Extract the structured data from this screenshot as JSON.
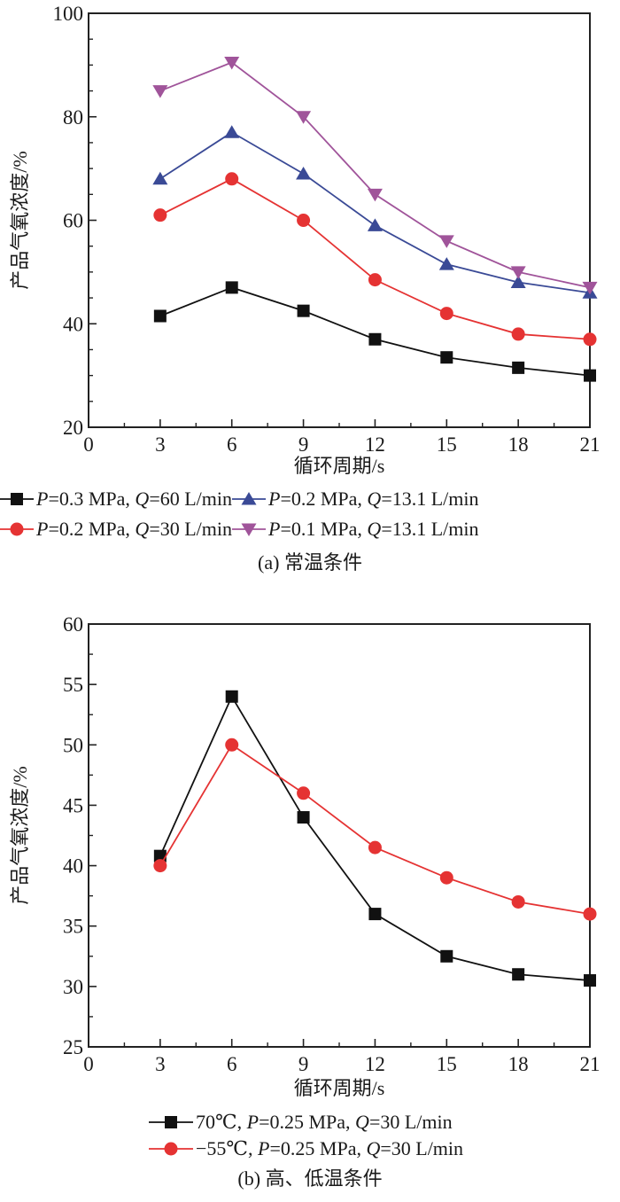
{
  "chart_data": [
    {
      "id": "a",
      "type": "line",
      "caption": "(a) 常温条件",
      "xlabel": "循环周期/s",
      "ylabel": "产品气氧浓度/%",
      "xlim": [
        0,
        21
      ],
      "ylim": [
        20,
        100
      ],
      "x_ticks": [
        0,
        3,
        6,
        9,
        12,
        15,
        18,
        21
      ],
      "y_ticks": [
        20,
        40,
        60,
        80,
        100
      ],
      "grid": false,
      "legend_placement": "bottom",
      "x": [
        3,
        6,
        9,
        12,
        15,
        18,
        21
      ],
      "series": [
        {
          "name": "P=0.3 MPa, Q=60 L/min",
          "label_parts": [
            [
              "P",
              true
            ],
            [
              "=0.3 MPa, ",
              false
            ],
            [
              "Q",
              true
            ],
            [
              "=60 L/min",
              false
            ]
          ],
          "color": "#111111",
          "marker": "square",
          "values": [
            41.5,
            47,
            42.5,
            37,
            33.5,
            31.5,
            30
          ]
        },
        {
          "name": "P=0.2 MPa, Q=13.1 L/min",
          "label_parts": [
            [
              "P",
              true
            ],
            [
              "=0.2 MPa, ",
              false
            ],
            [
              "Q",
              true
            ],
            [
              "=13.1 L/min",
              false
            ]
          ],
          "color": "#3a4a96",
          "marker": "triangle-up",
          "values": [
            68,
            77,
            69,
            59,
            51.5,
            48,
            46
          ]
        },
        {
          "name": "P=0.2 MPa, Q=30 L/min",
          "label_parts": [
            [
              "P",
              true
            ],
            [
              "=0.2 MPa, ",
              false
            ],
            [
              "Q",
              true
            ],
            [
              "=30 L/min",
              false
            ]
          ],
          "color": "#e53333",
          "marker": "circle",
          "values": [
            61,
            68,
            60,
            48.5,
            42,
            38,
            37
          ]
        },
        {
          "name": "P=0.1 MPa, Q=13.1 L/min",
          "label_parts": [
            [
              "P",
              true
            ],
            [
              "=0.1 MPa, ",
              false
            ],
            [
              "Q",
              true
            ],
            [
              "=13.1 L/min",
              false
            ]
          ],
          "color": "#a0549a",
          "marker": "triangle-down",
          "values": [
            85,
            90.5,
            80,
            65,
            56,
            50,
            47
          ]
        }
      ]
    },
    {
      "id": "b",
      "type": "line",
      "caption": "(b) 高、低温条件",
      "xlabel": "循环周期/s",
      "ylabel": "产品气氧浓度/%",
      "xlim": [
        0,
        21
      ],
      "ylim": [
        25,
        60
      ],
      "x_ticks": [
        0,
        3,
        6,
        9,
        12,
        15,
        18,
        21
      ],
      "y_ticks": [
        25,
        30,
        35,
        40,
        45,
        50,
        55,
        60
      ],
      "grid": false,
      "legend_placement": "bottom",
      "x": [
        3,
        6,
        9,
        12,
        15,
        18,
        21
      ],
      "series": [
        {
          "name": "70℃, P=0.25 MPa, Q=30 L/min",
          "label_parts": [
            [
              "70℃, ",
              false
            ],
            [
              "P",
              true
            ],
            [
              "=0.25 MPa, ",
              false
            ],
            [
              "Q",
              true
            ],
            [
              "=30 L/min",
              false
            ]
          ],
          "color": "#111111",
          "marker": "square",
          "values": [
            40.8,
            54,
            44,
            36,
            32.5,
            31,
            30.5
          ]
        },
        {
          "name": "−55℃, P=0.25 MPa, Q=30 L/min",
          "label_parts": [
            [
              "−55℃, ",
              false
            ],
            [
              "P",
              true
            ],
            [
              "=0.25 MPa, ",
              false
            ],
            [
              "Q",
              true
            ],
            [
              "=30 L/min",
              false
            ]
          ],
          "color": "#e53333",
          "marker": "circle",
          "values": [
            40,
            50,
            46,
            41.5,
            39,
            37,
            36
          ]
        }
      ]
    }
  ]
}
